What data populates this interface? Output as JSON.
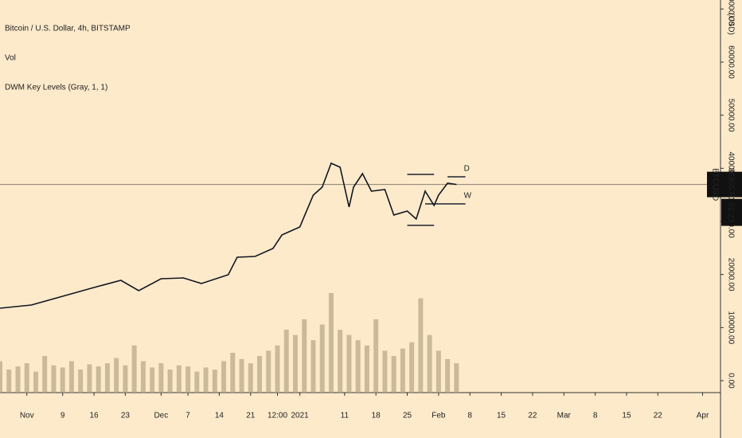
{
  "chart_data": {
    "type": "line",
    "title": "Bitcoin / U.S. Dollar, 4h, BITSTAMP",
    "indicators": [
      "Vol",
      "DWM Key Levels (Gray, 1, 1)"
    ],
    "currency": "(USD)",
    "x": [
      -6,
      1,
      8,
      15,
      21,
      25,
      30,
      35,
      39,
      45,
      47,
      51,
      55,
      57,
      61,
      64,
      66,
      68,
      70,
      72,
      73,
      75,
      77,
      80,
      82,
      85,
      87,
      89,
      91,
      92,
      94,
      96
    ],
    "series": [
      {
        "name": "BTCUSD",
        "color": "#131722",
        "values": [
          13650,
          14250,
          15900,
          17550,
          18900,
          16950,
          19200,
          19350,
          18300,
          19950,
          23250,
          23400,
          24900,
          27450,
          28950,
          34950,
          36450,
          40950,
          40200,
          32700,
          36450,
          39000,
          35700,
          36000,
          31200,
          31950,
          30450,
          35700,
          33000,
          34950,
          37200,
          36955
        ]
      }
    ],
    "last_price": {
      "value": 36955.01,
      "label": "36955.01"
    },
    "countdown": "01:23",
    "volume": {
      "color": "#b5a584",
      "x": [
        -6,
        -4,
        -2,
        0,
        2,
        4,
        6,
        8,
        10,
        12,
        14,
        16,
        18,
        20,
        22,
        24,
        26,
        28,
        30,
        32,
        34,
        36,
        38,
        40,
        42,
        44,
        46,
        48,
        50,
        52,
        54,
        56,
        58,
        60,
        62,
        64,
        66,
        68,
        70,
        72,
        74,
        76,
        78,
        80,
        82,
        84,
        86,
        88,
        90,
        92,
        94,
        96
      ],
      "values": [
        30,
        22,
        25,
        28,
        20,
        35,
        26,
        24,
        30,
        22,
        27,
        25,
        28,
        33,
        26,
        45,
        30,
        24,
        28,
        22,
        26,
        25,
        20,
        24,
        22,
        30,
        38,
        32,
        28,
        35,
        40,
        45,
        60,
        55,
        70,
        50,
        65,
        95,
        60,
        55,
        50,
        45,
        70,
        40,
        35,
        42,
        48,
        90,
        55,
        40,
        32,
        28
      ]
    },
    "key_levels": [
      {
        "label": "D",
        "value": 38400,
        "x": [
          94,
          98
        ]
      },
      {
        "label": "W",
        "value": 33300,
        "x": [
          89,
          98
        ]
      },
      {
        "value": 38850,
        "x": [
          85,
          91
        ]
      },
      {
        "value": 29250,
        "x": [
          85,
          91
        ]
      }
    ],
    "xlim": [
      -6,
      155
    ],
    "xticks": [
      {
        "value": 0,
        "label": "Nov"
      },
      {
        "value": 8,
        "label": "9"
      },
      {
        "value": 15,
        "label": "16"
      },
      {
        "value": 22,
        "label": "23"
      },
      {
        "value": 30,
        "label": "Dec"
      },
      {
        "value": 36,
        "label": "7"
      },
      {
        "value": 43,
        "label": "14"
      },
      {
        "value": 50,
        "label": "21"
      },
      {
        "value": 56,
        "label": "12:00"
      },
      {
        "value": 61,
        "label": "2021"
      },
      {
        "value": 71,
        "label": "11"
      },
      {
        "value": 78,
        "label": "18"
      },
      {
        "value": 85,
        "label": "25"
      },
      {
        "value": 92,
        "label": "Feb"
      },
      {
        "value": 99,
        "label": "8"
      },
      {
        "value": 106,
        "label": "15"
      },
      {
        "value": 113,
        "label": "22"
      },
      {
        "value": 120,
        "label": "Mar"
      },
      {
        "value": 127,
        "label": "8"
      },
      {
        "value": 134,
        "label": "15"
      },
      {
        "value": 141,
        "label": "22"
      },
      {
        "value": 151,
        "label": "Apr"
      }
    ],
    "ylim": [
      -2250,
      71700
    ],
    "yticks": [
      {
        "value": 0,
        "label": "0.00"
      },
      {
        "value": 10000,
        "label": "10000.00"
      },
      {
        "value": 20000,
        "label": "20000.00"
      },
      {
        "value": 30000,
        "label": "30000.00"
      },
      {
        "value": 40000,
        "label": "40000.00"
      },
      {
        "value": 50000,
        "label": "50000.00"
      },
      {
        "value": 60000,
        "label": "60000.00"
      },
      {
        "value": 70000,
        "label": "70000.00"
      }
    ]
  }
}
